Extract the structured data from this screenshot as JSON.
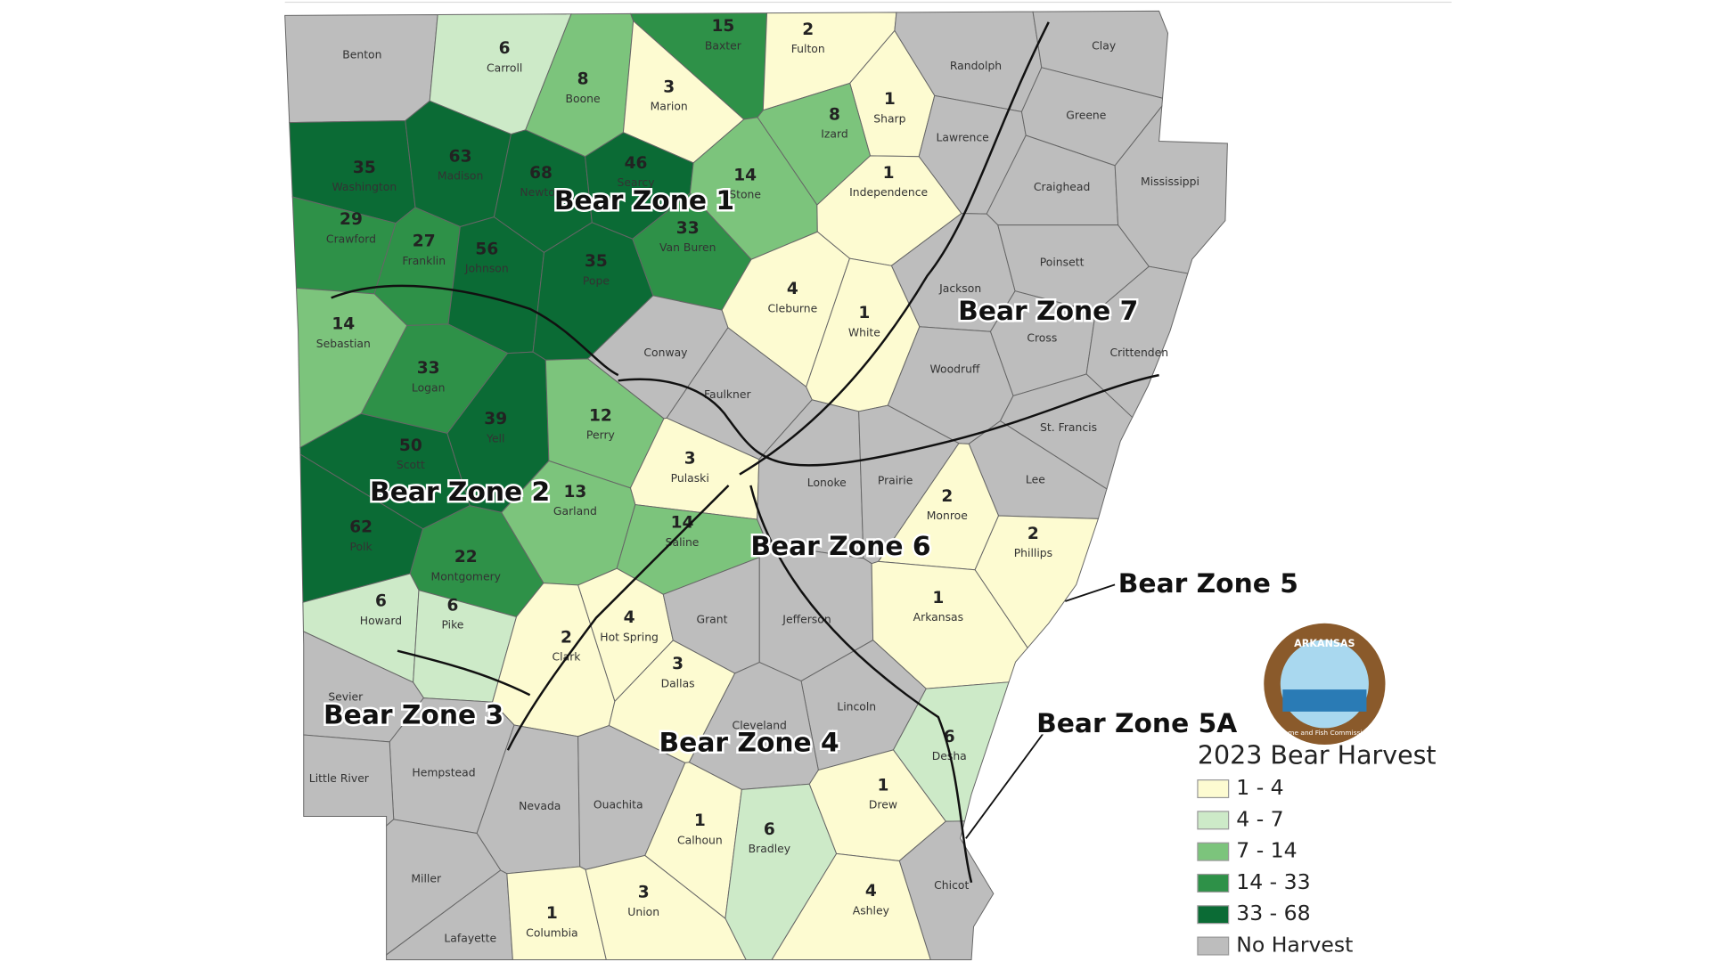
{
  "title": "2023 Bear Harvest",
  "logo": {
    "top": "ARKANSAS",
    "bottom": "Game and Fish Commission"
  },
  "zones": [
    "Bear Zone 1",
    "Bear Zone 2",
    "Bear Zone 3",
    "Bear Zone 4",
    "Bear Zone 5",
    "Bear Zone 5A",
    "Bear Zone 6",
    "Bear Zone 7"
  ],
  "legend": [
    {
      "label": "1 - 4",
      "color": "#fdfbd1"
    },
    {
      "label": "4 - 7",
      "color": "#cdeac8"
    },
    {
      "label": "7 - 14",
      "color": "#7cc47c"
    },
    {
      "label": "14 - 33",
      "color": "#2e9148"
    },
    {
      "label": "33 - 68",
      "color": "#0b6b35"
    },
    {
      "label": "No Harvest",
      "color": "#bdbdbd"
    }
  ],
  "counties": [
    {
      "name": "Benton",
      "color": "#bdbdbd"
    },
    {
      "name": "Carroll",
      "harvest": 6,
      "color": "#cdeac8"
    },
    {
      "name": "Boone",
      "harvest": 8,
      "color": "#7cc47c"
    },
    {
      "name": "Marion",
      "harvest": 3,
      "color": "#fdfbd1"
    },
    {
      "name": "Baxter",
      "harvest": 15,
      "color": "#2e9148"
    },
    {
      "name": "Fulton",
      "harvest": 2,
      "color": "#fdfbd1"
    },
    {
      "name": "Randolph",
      "color": "#bdbdbd"
    },
    {
      "name": "Clay",
      "color": "#bdbdbd"
    },
    {
      "name": "Sharp",
      "harvest": 1,
      "color": "#fdfbd1"
    },
    {
      "name": "Izard",
      "harvest": 8,
      "color": "#7cc47c"
    },
    {
      "name": "Lawrence",
      "color": "#bdbdbd"
    },
    {
      "name": "Greene",
      "color": "#bdbdbd"
    },
    {
      "name": "Washington",
      "harvest": 35,
      "color": "#0b6b35"
    },
    {
      "name": "Madison",
      "harvest": 63,
      "color": "#0b6b35"
    },
    {
      "name": "Newton",
      "harvest": 68,
      "color": "#0b6b35"
    },
    {
      "name": "Searcy",
      "harvest": 46,
      "color": "#0b6b35"
    },
    {
      "name": "Stone",
      "harvest": 14,
      "color": "#7cc47c"
    },
    {
      "name": "Independence",
      "harvest": 1,
      "color": "#fdfbd1"
    },
    {
      "name": "Craighead",
      "color": "#bdbdbd"
    },
    {
      "name": "Mississippi",
      "color": "#bdbdbd"
    },
    {
      "name": "Crawford",
      "harvest": 29,
      "color": "#2e9148"
    },
    {
      "name": "Franklin",
      "harvest": 27,
      "color": "#2e9148"
    },
    {
      "name": "Johnson",
      "harvest": 56,
      "color": "#0b6b35"
    },
    {
      "name": "Pope",
      "harvest": 35,
      "color": "#0b6b35"
    },
    {
      "name": "Van Buren",
      "harvest": 33,
      "color": "#2e9148"
    },
    {
      "name": "Cleburne",
      "harvest": 4,
      "color": "#fdfbd1"
    },
    {
      "name": "Jackson",
      "color": "#bdbdbd"
    },
    {
      "name": "Poinsett",
      "color": "#bdbdbd"
    },
    {
      "name": "Sebastian",
      "harvest": 14,
      "color": "#7cc47c"
    },
    {
      "name": "Logan",
      "harvest": 33,
      "color": "#2e9148"
    },
    {
      "name": "Conway",
      "color": "#bdbdbd"
    },
    {
      "name": "Faulkner",
      "color": "#bdbdbd"
    },
    {
      "name": "White",
      "harvest": 1,
      "color": "#fdfbd1"
    },
    {
      "name": "Cross",
      "color": "#bdbdbd"
    },
    {
      "name": "Crittenden",
      "color": "#bdbdbd"
    },
    {
      "name": "Woodruff",
      "color": "#bdbdbd"
    },
    {
      "name": "Scott",
      "harvest": 50,
      "color": "#0b6b35"
    },
    {
      "name": "Yell",
      "harvest": 39,
      "color": "#0b6b35"
    },
    {
      "name": "Perry",
      "harvest": 12,
      "color": "#7cc47c"
    },
    {
      "name": "St. Francis",
      "color": "#bdbdbd"
    },
    {
      "name": "Pulaski",
      "harvest": 3,
      "color": "#fdfbd1"
    },
    {
      "name": "Lonoke",
      "color": "#bdbdbd"
    },
    {
      "name": "Prairie",
      "color": "#bdbdbd"
    },
    {
      "name": "Lee",
      "color": "#bdbdbd"
    },
    {
      "name": "Monroe",
      "harvest": 2,
      "color": "#fdfbd1"
    },
    {
      "name": "Garland",
      "harvest": 13,
      "color": "#7cc47c"
    },
    {
      "name": "Saline",
      "harvest": 14,
      "color": "#7cc47c"
    },
    {
      "name": "Polk",
      "harvest": 62,
      "color": "#0b6b35"
    },
    {
      "name": "Montgomery",
      "harvest": 22,
      "color": "#2e9148"
    },
    {
      "name": "Phillips",
      "harvest": 2,
      "color": "#fdfbd1"
    },
    {
      "name": "Howard",
      "harvest": 6,
      "color": "#cdeac8"
    },
    {
      "name": "Pike",
      "harvest": 6,
      "color": "#cdeac8"
    },
    {
      "name": "Hot Spring",
      "harvest": 4,
      "color": "#fdfbd1"
    },
    {
      "name": "Grant",
      "color": "#bdbdbd"
    },
    {
      "name": "Jefferson",
      "color": "#bdbdbd"
    },
    {
      "name": "Arkansas",
      "harvest": 1,
      "color": "#fdfbd1"
    },
    {
      "name": "Clark",
      "harvest": 2,
      "color": "#fdfbd1"
    },
    {
      "name": "Sevier",
      "color": "#bdbdbd"
    },
    {
      "name": "Dallas",
      "harvest": 3,
      "color": "#fdfbd1"
    },
    {
      "name": "Lincoln",
      "color": "#bdbdbd"
    },
    {
      "name": "Cleveland",
      "color": "#bdbdbd"
    },
    {
      "name": "Desha",
      "harvest": 6,
      "color": "#cdeac8"
    },
    {
      "name": "Hempstead",
      "color": "#bdbdbd"
    },
    {
      "name": "Little River",
      "color": "#bdbdbd"
    },
    {
      "name": "Nevada",
      "color": "#bdbdbd"
    },
    {
      "name": "Ouachita",
      "color": "#bdbdbd"
    },
    {
      "name": "Calhoun",
      "harvest": 1,
      "color": "#fdfbd1"
    },
    {
      "name": "Bradley",
      "harvest": 6,
      "color": "#cdeac8"
    },
    {
      "name": "Drew",
      "harvest": 1,
      "color": "#fdfbd1"
    },
    {
      "name": "Miller",
      "color": "#bdbdbd"
    },
    {
      "name": "Chicot",
      "color": "#bdbdbd"
    },
    {
      "name": "Lafayette",
      "color": "#bdbdbd"
    },
    {
      "name": "Columbia",
      "harvest": 1,
      "color": "#fdfbd1"
    },
    {
      "name": "Union",
      "harvest": 3,
      "color": "#fdfbd1"
    },
    {
      "name": "Ashley",
      "harvest": 4,
      "color": "#fdfbd1"
    }
  ]
}
